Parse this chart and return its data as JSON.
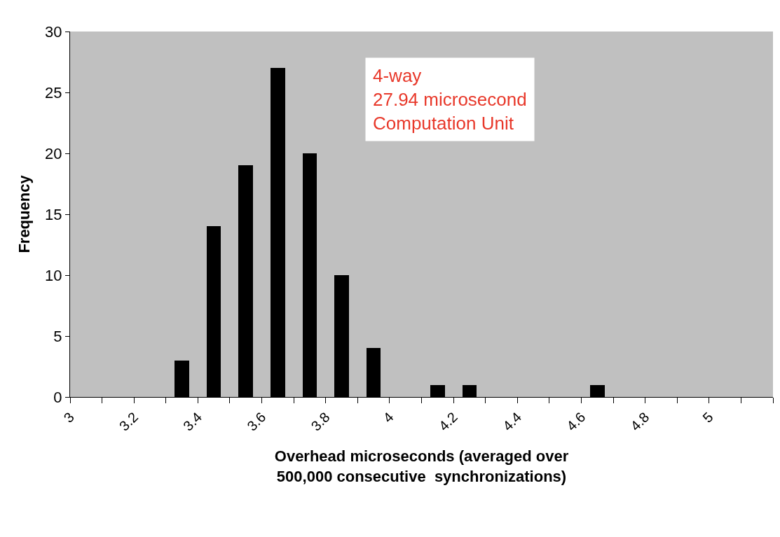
{
  "chart_data": {
    "type": "histogram",
    "xlabel": "Overhead microseconds (averaged over\n500,000 consecutive  synchronizations)",
    "ylabel": "Frequency",
    "bins": [
      3.0,
      3.1,
      3.2,
      3.3,
      3.4,
      3.5,
      3.6,
      3.7,
      3.8,
      3.9,
      4.0,
      4.1,
      4.2,
      4.3,
      4.4,
      4.5,
      4.6,
      4.7,
      4.8,
      4.9,
      5.0,
      5.1,
      5.2
    ],
    "values": [
      0,
      0,
      0,
      3,
      14,
      19,
      27,
      20,
      10,
      4,
      0,
      1,
      1,
      0,
      0,
      0,
      1,
      0,
      0,
      0,
      0,
      0
    ],
    "color": "#000000",
    "xlim": [
      3.0,
      5.2
    ],
    "xticks": [
      3,
      {
        "value": 3.1,
        "label": null
      },
      3.2,
      {
        "value": 3.3,
        "label": null
      },
      3.4,
      {
        "value": 3.5,
        "label": null
      },
      3.6,
      {
        "value": 3.7,
        "label": null
      },
      3.8,
      {
        "value": 3.9,
        "label": null
      },
      4,
      {
        "value": 4.1,
        "label": null
      },
      4.2,
      {
        "value": 4.3,
        "label": null
      },
      4.4,
      {
        "value": 4.5,
        "label": null
      },
      4.6,
      {
        "value": 4.7,
        "label": null
      },
      4.8,
      {
        "value": 4.9,
        "label": null
      },
      5,
      {
        "value": 5.1,
        "label": null
      },
      {
        "value": 5.2,
        "label": null
      }
    ],
    "ylim": [
      0,
      30
    ],
    "yticks": [
      0,
      5,
      10,
      15,
      20,
      25,
      30
    ],
    "grid": false,
    "annotations": [
      "4-way\n27.94 microsecond\nComputation Unit"
    ]
  }
}
